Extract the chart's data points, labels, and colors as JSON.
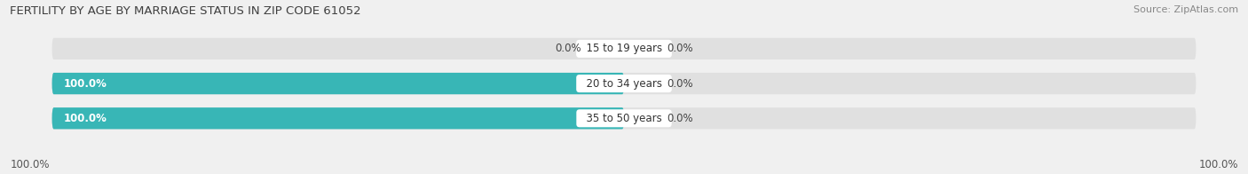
{
  "title": "FERTILITY BY AGE BY MARRIAGE STATUS IN ZIP CODE 61052",
  "source": "Source: ZipAtlas.com",
  "categories": [
    "15 to 19 years",
    "20 to 34 years",
    "35 to 50 years"
  ],
  "married_values": [
    0.0,
    100.0,
    100.0
  ],
  "unmarried_values": [
    0.0,
    0.0,
    0.0
  ],
  "married_color": "#38b6b6",
  "unmarried_color": "#f4a7bb",
  "bar_bg_color": "#e0e0e0",
  "title_fontsize": 9.5,
  "source_fontsize": 8,
  "label_fontsize": 8.5,
  "category_fontsize": 8.5,
  "legend_fontsize": 9,
  "axis_label_left": "100.0%",
  "axis_label_right": "100.0%",
  "background_color": "#f0f0f0"
}
